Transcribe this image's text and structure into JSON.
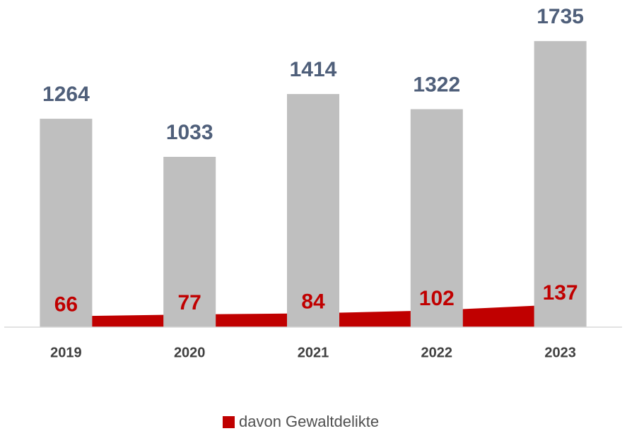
{
  "chart_data": {
    "type": "bar",
    "categories": [
      "2019",
      "2020",
      "2021",
      "2022",
      "2023"
    ],
    "ylim": [
      0,
      1800
    ],
    "series": [
      {
        "color": "#bfbfbf",
        "values": [
          1264,
          1033,
          1414,
          1322,
          1735
        ]
      },
      {
        "name": "davon Gewaltdelikte",
        "type": "area",
        "color": "#c00000",
        "values": [
          66,
          77,
          84,
          102,
          137
        ]
      }
    ],
    "legend": "bottom"
  }
}
